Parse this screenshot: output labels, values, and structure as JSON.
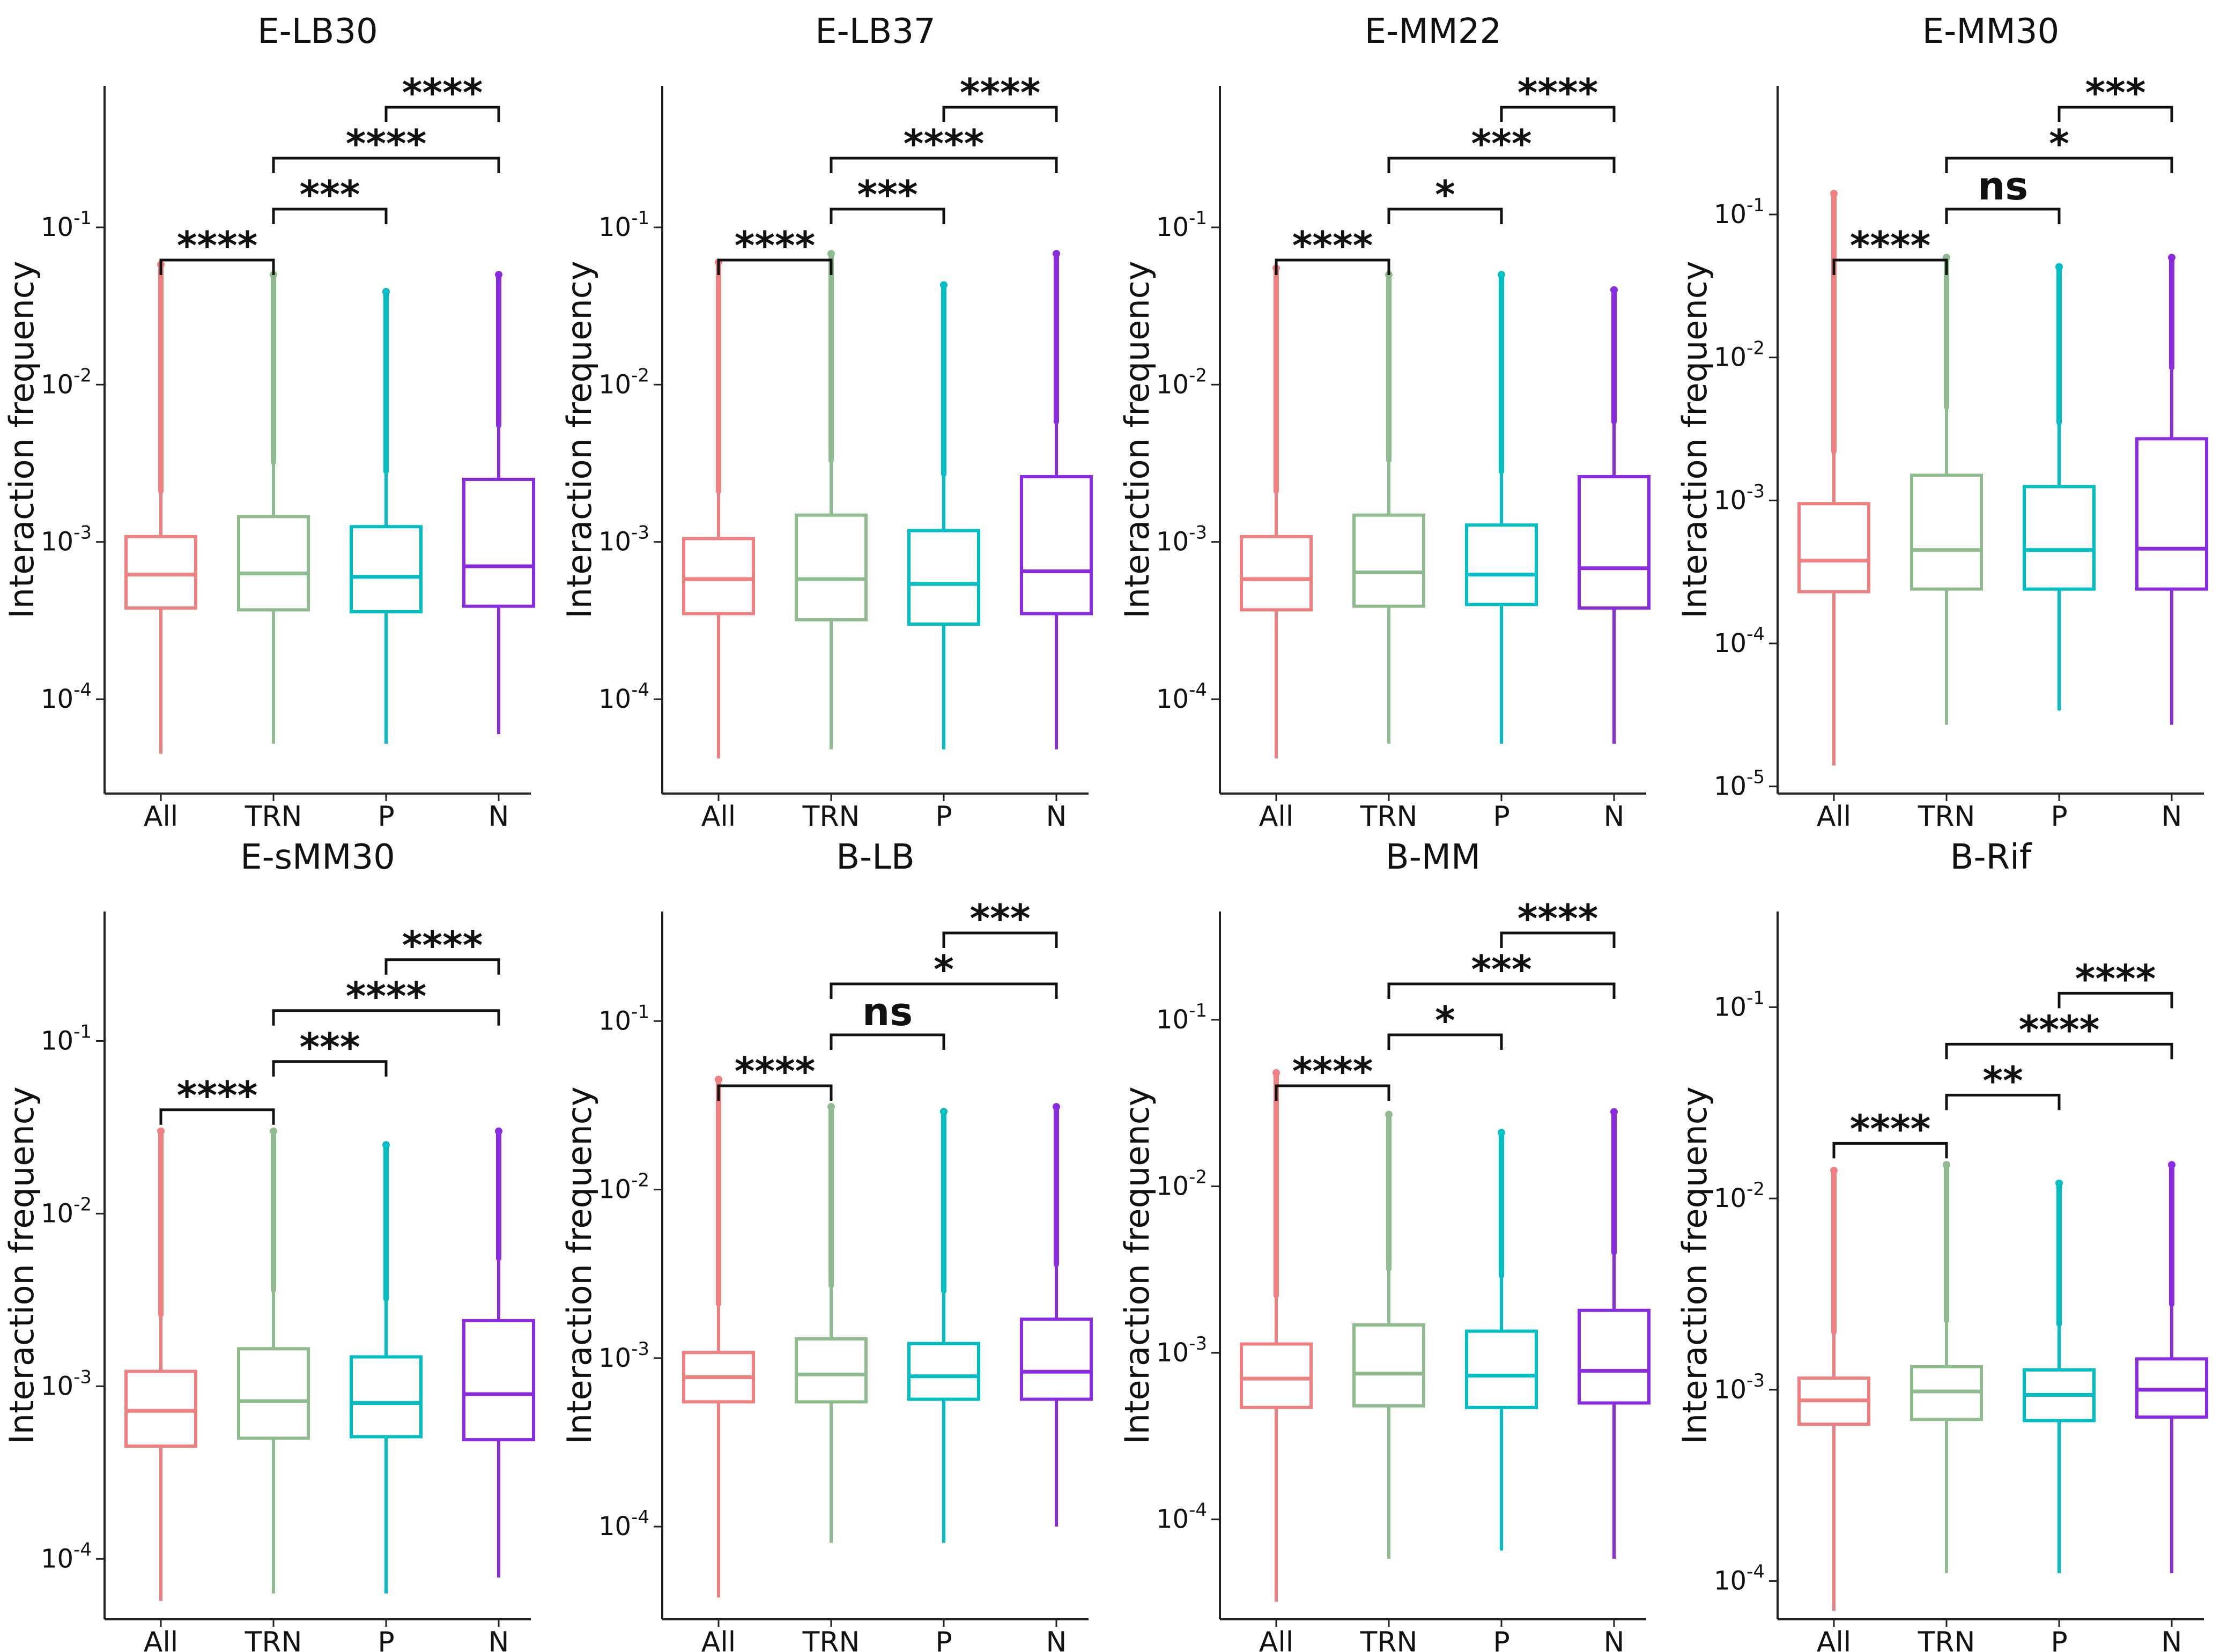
{
  "chart_data": {
    "type": "box",
    "layout": "2x4 grid of panels",
    "ylabel": "Interaction frequency",
    "categories": [
      "All",
      "TRN",
      "P",
      "N"
    ],
    "series_colors": [
      "#F08080",
      "#8FBC8F",
      "#00BFC4",
      "#8A2BE2"
    ],
    "yscale": "log",
    "panels": [
      {
        "title": "E-LB30",
        "ylim_log10": [
          -4.6,
          -0.1
        ],
        "yticks": [
          {
            "value": -4,
            "label": "10^-4",
            "mant": "10",
            "exp": "-4"
          },
          {
            "value": -3,
            "label": "10^-3",
            "mant": "10",
            "exp": "-3"
          },
          {
            "value": -2,
            "label": "10^-2",
            "mant": "10",
            "exp": "-2"
          },
          {
            "value": -1,
            "label": "10^-1",
            "mant": "10",
            "exp": "-1"
          }
        ],
        "boxes": [
          {
            "category": "All",
            "min": 4.5e-05,
            "q1": 0.00038,
            "median": 0.00062,
            "q3": 0.00108,
            "upper_whisker": 0.0021,
            "max": 0.058
          },
          {
            "category": "TRN",
            "min": 5.2e-05,
            "q1": 0.00037,
            "median": 0.00063,
            "q3": 0.00145,
            "upper_whisker": 0.0032,
            "max": 0.05
          },
          {
            "category": "P",
            "min": 5.2e-05,
            "q1": 0.00036,
            "median": 0.0006,
            "q3": 0.00125,
            "upper_whisker": 0.0028,
            "max": 0.039
          },
          {
            "category": "N",
            "min": 6e-05,
            "q1": 0.00039,
            "median": 0.0007,
            "q3": 0.0025,
            "upper_whisker": 0.0055,
            "max": 0.05
          }
        ],
        "comparisons": [
          {
            "from": "All",
            "to": "TRN",
            "label": "****"
          },
          {
            "from": "TRN",
            "to": "P",
            "label": "***"
          },
          {
            "from": "TRN",
            "to": "N",
            "label": "****"
          },
          {
            "from": "P",
            "to": "N",
            "label": "****"
          }
        ]
      },
      {
        "title": "E-LB37",
        "ylim_log10": [
          -4.6,
          -0.1
        ],
        "yticks": [
          {
            "value": -4,
            "label": "10^-4",
            "mant": "10",
            "exp": "-4"
          },
          {
            "value": -3,
            "label": "10^-3",
            "mant": "10",
            "exp": "-3"
          },
          {
            "value": -2,
            "label": "10^-2",
            "mant": "10",
            "exp": "-2"
          },
          {
            "value": -1,
            "label": "10^-1",
            "mant": "10",
            "exp": "-1"
          }
        ],
        "boxes": [
          {
            "category": "All",
            "min": 4.2e-05,
            "q1": 0.00035,
            "median": 0.00058,
            "q3": 0.00105,
            "upper_whisker": 0.0021,
            "max": 0.06
          },
          {
            "category": "TRN",
            "min": 4.8e-05,
            "q1": 0.00032,
            "median": 0.00058,
            "q3": 0.00148,
            "upper_whisker": 0.0033,
            "max": 0.068
          },
          {
            "category": "P",
            "min": 4.8e-05,
            "q1": 0.0003,
            "median": 0.00054,
            "q3": 0.00118,
            "upper_whisker": 0.0027,
            "max": 0.043
          },
          {
            "category": "N",
            "min": 4.8e-05,
            "q1": 0.00035,
            "median": 0.00065,
            "q3": 0.0026,
            "upper_whisker": 0.0058,
            "max": 0.068
          }
        ],
        "comparisons": [
          {
            "from": "All",
            "to": "TRN",
            "label": "****"
          },
          {
            "from": "TRN",
            "to": "P",
            "label": "***"
          },
          {
            "from": "TRN",
            "to": "N",
            "label": "****"
          },
          {
            "from": "P",
            "to": "N",
            "label": "****"
          }
        ]
      },
      {
        "title": "E-MM22",
        "ylim_log10": [
          -4.6,
          -0.1
        ],
        "yticks": [
          {
            "value": -4,
            "label": "10^-4",
            "mant": "10",
            "exp": "-4"
          },
          {
            "value": -3,
            "label": "10^-3",
            "mant": "10",
            "exp": "-3"
          },
          {
            "value": -2,
            "label": "10^-2",
            "mant": "10",
            "exp": "-2"
          },
          {
            "value": -1,
            "label": "10^-1",
            "mant": "10",
            "exp": "-1"
          }
        ],
        "boxes": [
          {
            "category": "All",
            "min": 4.2e-05,
            "q1": 0.00037,
            "median": 0.00058,
            "q3": 0.00108,
            "upper_whisker": 0.0021,
            "max": 0.055
          },
          {
            "category": "TRN",
            "min": 5.2e-05,
            "q1": 0.00039,
            "median": 0.00064,
            "q3": 0.00148,
            "upper_whisker": 0.0033,
            "max": 0.05
          },
          {
            "category": "P",
            "min": 5.2e-05,
            "q1": 0.0004,
            "median": 0.00062,
            "q3": 0.00128,
            "upper_whisker": 0.0028,
            "max": 0.05
          },
          {
            "category": "N",
            "min": 5.2e-05,
            "q1": 0.00038,
            "median": 0.00068,
            "q3": 0.0026,
            "upper_whisker": 0.0058,
            "max": 0.04
          }
        ],
        "comparisons": [
          {
            "from": "All",
            "to": "TRN",
            "label": "****"
          },
          {
            "from": "TRN",
            "to": "P",
            "label": "*"
          },
          {
            "from": "TRN",
            "to": "N",
            "label": "***"
          },
          {
            "from": "P",
            "to": "N",
            "label": "****"
          }
        ]
      },
      {
        "title": "E-MM30",
        "ylim_log10": [
          -5.05,
          -0.1
        ],
        "yticks": [
          {
            "value": -5,
            "label": "10^-5",
            "mant": "10",
            "exp": "-5"
          },
          {
            "value": -4,
            "label": "10^-4",
            "mant": "10",
            "exp": "-4"
          },
          {
            "value": -3,
            "label": "10^-3",
            "mant": "10",
            "exp": "-3"
          },
          {
            "value": -2,
            "label": "10^-2",
            "mant": "10",
            "exp": "-2"
          },
          {
            "value": -1,
            "label": "10^-1",
            "mant": "10",
            "exp": "-1"
          }
        ],
        "boxes": [
          {
            "category": "All",
            "min": 1.4e-05,
            "q1": 0.00023,
            "median": 0.00038,
            "q3": 0.00095,
            "upper_whisker": 0.0022,
            "max": 0.14
          },
          {
            "category": "TRN",
            "min": 2.7e-05,
            "q1": 0.00024,
            "median": 0.00045,
            "q3": 0.0015,
            "upper_whisker": 0.0045,
            "max": 0.05
          },
          {
            "category": "P",
            "min": 3.4e-05,
            "q1": 0.00024,
            "median": 0.00045,
            "q3": 0.00125,
            "upper_whisker": 0.0035,
            "max": 0.043
          },
          {
            "category": "N",
            "min": 2.7e-05,
            "q1": 0.00024,
            "median": 0.00046,
            "q3": 0.0027,
            "upper_whisker": 0.0085,
            "max": 0.05
          }
        ],
        "comparisons": [
          {
            "from": "All",
            "to": "TRN",
            "label": "****"
          },
          {
            "from": "TRN",
            "to": "P",
            "label": "ns"
          },
          {
            "from": "TRN",
            "to": "N",
            "label": "*"
          },
          {
            "from": "P",
            "to": "N",
            "label": "***"
          }
        ]
      },
      {
        "title": "E-sMM30",
        "ylim_log10": [
          -4.35,
          -0.25
        ],
        "yticks": [
          {
            "value": -4,
            "label": "10^-4",
            "mant": "10",
            "exp": "-4"
          },
          {
            "value": -3,
            "label": "10^-3",
            "mant": "10",
            "exp": "-3"
          },
          {
            "value": -2,
            "label": "10^-2",
            "mant": "10",
            "exp": "-2"
          },
          {
            "value": -1,
            "label": "10^-1",
            "mant": "10",
            "exp": "-1"
          }
        ],
        "boxes": [
          {
            "category": "All",
            "min": 5.7e-05,
            "q1": 0.00045,
            "median": 0.00072,
            "q3": 0.00122,
            "upper_whisker": 0.0026,
            "max": 0.03
          },
          {
            "category": "TRN",
            "min": 6.3e-05,
            "q1": 0.0005,
            "median": 0.00082,
            "q3": 0.00165,
            "upper_whisker": 0.0036,
            "max": 0.03
          },
          {
            "category": "P",
            "min": 6.3e-05,
            "q1": 0.00051,
            "median": 0.0008,
            "q3": 0.00148,
            "upper_whisker": 0.0032,
            "max": 0.025
          },
          {
            "category": "N",
            "min": 7.8e-05,
            "q1": 0.00049,
            "median": 0.0009,
            "q3": 0.0024,
            "upper_whisker": 0.0055,
            "max": 0.03
          }
        ],
        "comparisons": [
          {
            "from": "All",
            "to": "TRN",
            "label": "****"
          },
          {
            "from": "TRN",
            "to": "P",
            "label": "***"
          },
          {
            "from": "TRN",
            "to": "N",
            "label": "****"
          },
          {
            "from": "P",
            "to": "N",
            "label": "****"
          }
        ]
      },
      {
        "title": "B-LB",
        "ylim_log10": [
          -4.55,
          -0.35
        ],
        "yticks": [
          {
            "value": -4,
            "label": "10^-4",
            "mant": "10",
            "exp": "-4"
          },
          {
            "value": -3,
            "label": "10^-3",
            "mant": "10",
            "exp": "-3"
          },
          {
            "value": -2,
            "label": "10^-2",
            "mant": "10",
            "exp": "-2"
          },
          {
            "value": -1,
            "label": "10^-1",
            "mant": "10",
            "exp": "-1"
          }
        ],
        "boxes": [
          {
            "category": "All",
            "min": 3.8e-05,
            "q1": 0.00055,
            "median": 0.00077,
            "q3": 0.00108,
            "upper_whisker": 0.0021,
            "max": 0.045
          },
          {
            "category": "TRN",
            "min": 8e-05,
            "q1": 0.00055,
            "median": 0.0008,
            "q3": 0.0013,
            "upper_whisker": 0.0027,
            "max": 0.031
          },
          {
            "category": "P",
            "min": 8e-05,
            "q1": 0.00057,
            "median": 0.00078,
            "q3": 0.00122,
            "upper_whisker": 0.0025,
            "max": 0.029
          },
          {
            "category": "N",
            "min": 0.0001,
            "q1": 0.00057,
            "median": 0.00083,
            "q3": 0.0017,
            "upper_whisker": 0.0036,
            "max": 0.031
          }
        ],
        "comparisons": [
          {
            "from": "All",
            "to": "TRN",
            "label": "****"
          },
          {
            "from": "TRN",
            "to": "P",
            "label": "ns"
          },
          {
            "from": "TRN",
            "to": "N",
            "label": "*"
          },
          {
            "from": "P",
            "to": "N",
            "label": "***"
          }
        ]
      },
      {
        "title": "B-MM",
        "ylim_log10": [
          -4.6,
          -0.35
        ],
        "yticks": [
          {
            "value": -4,
            "label": "10^-4",
            "mant": "10",
            "exp": "-4"
          },
          {
            "value": -3,
            "label": "10^-3",
            "mant": "10",
            "exp": "-3"
          },
          {
            "value": -2,
            "label": "10^-2",
            "mant": "10",
            "exp": "-2"
          },
          {
            "value": -1,
            "label": "10^-1",
            "mant": "10",
            "exp": "-1"
          }
        ],
        "boxes": [
          {
            "category": "All",
            "min": 3.2e-05,
            "q1": 0.00047,
            "median": 0.0007,
            "q3": 0.00113,
            "upper_whisker": 0.0022,
            "max": 0.048
          },
          {
            "category": "TRN",
            "min": 5.8e-05,
            "q1": 0.00048,
            "median": 0.00075,
            "q3": 0.00147,
            "upper_whisker": 0.0032,
            "max": 0.027
          },
          {
            "category": "P",
            "min": 6.5e-05,
            "q1": 0.00047,
            "median": 0.00073,
            "q3": 0.00135,
            "upper_whisker": 0.0029,
            "max": 0.021
          },
          {
            "category": "N",
            "min": 5.8e-05,
            "q1": 0.0005,
            "median": 0.00078,
            "q3": 0.0018,
            "upper_whisker": 0.004,
            "max": 0.028
          }
        ],
        "comparisons": [
          {
            "from": "All",
            "to": "TRN",
            "label": "****"
          },
          {
            "from": "TRN",
            "to": "P",
            "label": "*"
          },
          {
            "from": "TRN",
            "to": "N",
            "label": "***"
          },
          {
            "from": "P",
            "to": "N",
            "label": "****"
          }
        ]
      },
      {
        "title": "B-Rif",
        "ylim_log10": [
          -4.2,
          -0.5
        ],
        "yticks": [
          {
            "value": -4,
            "label": "10^-4",
            "mant": "10",
            "exp": "-4"
          },
          {
            "value": -3,
            "label": "10^-3",
            "mant": "10",
            "exp": "-3"
          },
          {
            "value": -2,
            "label": "10^-2",
            "mant": "10",
            "exp": "-2"
          },
          {
            "value": -1,
            "label": "10^-1",
            "mant": "10",
            "exp": "-1"
          }
        ],
        "boxes": [
          {
            "category": "All",
            "min": 7e-05,
            "q1": 0.00066,
            "median": 0.00088,
            "q3": 0.00115,
            "upper_whisker": 0.002,
            "max": 0.014
          },
          {
            "category": "TRN",
            "min": 0.00011,
            "q1": 0.0007,
            "median": 0.00098,
            "q3": 0.00132,
            "upper_whisker": 0.0023,
            "max": 0.015
          },
          {
            "category": "P",
            "min": 0.00011,
            "q1": 0.00069,
            "median": 0.00094,
            "q3": 0.00127,
            "upper_whisker": 0.0022,
            "max": 0.012
          },
          {
            "category": "N",
            "min": 0.00011,
            "q1": 0.00072,
            "median": 0.001,
            "q3": 0.00145,
            "upper_whisker": 0.0028,
            "max": 0.015
          }
        ],
        "comparisons": [
          {
            "from": "All",
            "to": "TRN",
            "label": "****"
          },
          {
            "from": "TRN",
            "to": "P",
            "label": "**"
          },
          {
            "from": "TRN",
            "to": "N",
            "label": "****"
          },
          {
            "from": "P",
            "to": "N",
            "label": "****"
          }
        ]
      }
    ]
  }
}
